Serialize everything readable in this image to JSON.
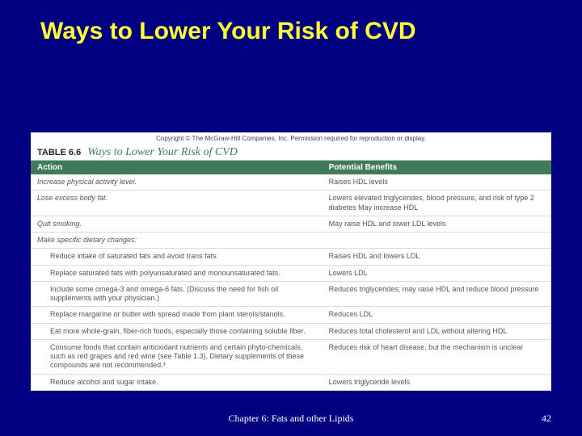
{
  "slide": {
    "title": "Ways to Lower Your Risk of CVD",
    "footer_center": "Chapter 6: Fats and other Lipids",
    "page_number": "42",
    "background_color": "#000080",
    "title_color": "#ffff33"
  },
  "table": {
    "copyright": "Copyright © The McGraw-Hill Companies, Inc. Permission required for reproduction or display.",
    "label": "TABLE 6.6",
    "caption": "Ways to Lower Your Risk of CVD",
    "header_bg": "#3f7a5a",
    "caption_color": "#3f7a5a",
    "columns": [
      "Action",
      "Potential Benefits"
    ],
    "rows": [
      {
        "level": "top",
        "action": "Increase physical activity level.",
        "benefit": "Raises HDL levels"
      },
      {
        "level": "top",
        "action": "Lose excess body fat.",
        "benefit": "Lowers elevated triglycerides, blood pressure, and risk of type 2 diabetes\nMay increase HDL"
      },
      {
        "level": "top",
        "action": "Quit smoking.",
        "benefit": "May raise HDL and lower LDL levels"
      },
      {
        "level": "top",
        "action": "Make specific dietary changes:",
        "benefit": ""
      },
      {
        "level": "indent",
        "action": "Reduce intake of saturated fats and avoid trans fats.",
        "benefit": "Raises HDL and lowers LDL"
      },
      {
        "level": "indent",
        "action": "Replace saturated fats with polyunsaturated and monounsaturated fats.",
        "benefit": "Lowers LDL"
      },
      {
        "level": "indent",
        "action": "Include some omega-3 and omega-6 fats.\n(Discuss the need for fish oil supplements with your physician.)",
        "benefit": "Reduces triglycerides; may raise HDL and reduce blood pressure"
      },
      {
        "level": "indent",
        "action": "Replace margarine or butter with spread made from plant sterols/stanols.",
        "benefit": "Reduces LDL"
      },
      {
        "level": "indent",
        "action": "Eat more whole-grain, fiber-rich foods, especially those containing soluble fiber.",
        "benefit": "Reduces total cholesterol and LDL without altering HDL"
      },
      {
        "level": "indent",
        "action": "Consume foods that contain antioxidant nutrients and certain phyto-chemicals, such as red grapes and red wine (see Table 1.3). Dietary supplements of these compounds are not recommended.³",
        "benefit": "Reduces risk of heart disease, but the mechanism is unclear"
      },
      {
        "level": "indent",
        "action": "Reduce alcohol and sugar intake.",
        "benefit": "Lowers triglyceride levels"
      }
    ]
  }
}
